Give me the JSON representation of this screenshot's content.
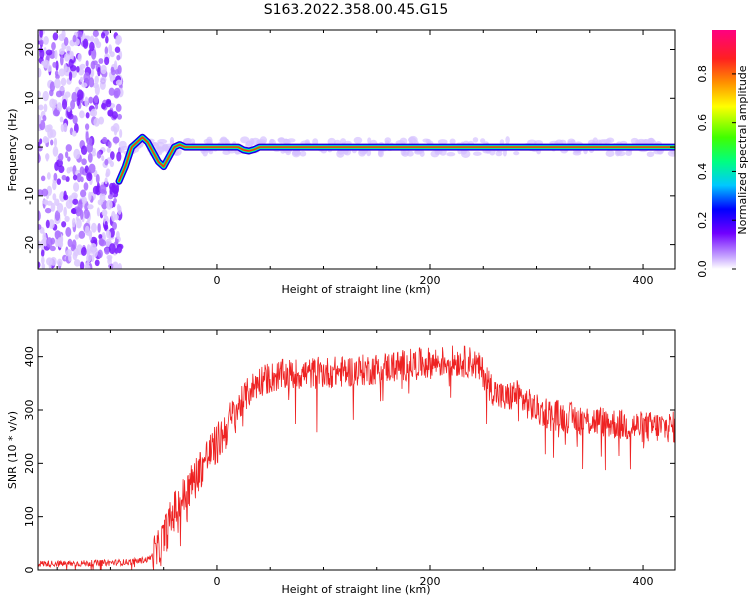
{
  "figure": {
    "title": "S163.2022.358.00.45.G15"
  },
  "chart_data": [
    {
      "type": "heatmap",
      "xlabel": "Height of straight line (km)",
      "ylabel": "Frequency (Hz)",
      "xlim": [
        -168,
        430
      ],
      "ylim": [
        -25,
        24
      ],
      "xticks": [
        0,
        200,
        400
      ],
      "yticks": [
        -20,
        -10,
        0,
        10,
        20
      ],
      "colorbar": {
        "label": "Normalized spectral amplitude",
        "range": [
          0,
          0.98
        ],
        "ticks": [
          0.0,
          0.2,
          0.4,
          0.6,
          0.8
        ],
        "colors": [
          "#ffffff",
          "#c8a8ff",
          "#7000ff",
          "#0000ff",
          "#00c8ff",
          "#00ff80",
          "#40ff00",
          "#ffff00",
          "#ff9000",
          "#ff2020",
          "#ff0080"
        ]
      },
      "ridge": {
        "x": [
          -92,
          -86,
          -80,
          -75,
          -70,
          -65,
          -60,
          -55,
          -50,
          -45,
          -40,
          -35,
          -30,
          -20,
          0,
          20,
          25,
          30,
          35,
          40,
          60,
          100,
          200,
          300,
          430
        ],
        "y": [
          -7,
          -4,
          0,
          1,
          2,
          1,
          -1,
          -3,
          -4,
          -2,
          0,
          0.5,
          0,
          0,
          0,
          0,
          -0.6,
          -0.8,
          -0.5,
          0,
          0,
          0,
          0,
          0,
          0
        ]
      },
      "noise_region_x": [
        -168,
        -90
      ]
    },
    {
      "type": "line",
      "xlabel": "Height of straight line (km)",
      "ylabel": "SNR (10 * v/v)",
      "xlim": [
        -168,
        430
      ],
      "ylim": [
        0,
        450
      ],
      "xticks": [
        0,
        200,
        400
      ],
      "yticks": [
        0,
        100,
        200,
        300,
        400
      ],
      "series": [
        {
          "color": "#ee2222",
          "x": [
            -168,
            -140,
            -110,
            -80,
            -65,
            -55,
            -48,
            -40,
            -30,
            -20,
            -10,
            0,
            10,
            20,
            30,
            40,
            60,
            80,
            100,
            120,
            140,
            160,
            180,
            200,
            220,
            240,
            250,
            260,
            270,
            280,
            290,
            300,
            320,
            340,
            360,
            380,
            400,
            430
          ],
          "y": [
            12,
            12,
            13,
            15,
            20,
            35,
            70,
            110,
            140,
            175,
            210,
            235,
            270,
            305,
            335,
            355,
            365,
            368,
            370,
            372,
            375,
            380,
            385,
            388,
            392,
            390,
            370,
            335,
            320,
            330,
            315,
            300,
            290,
            282,
            278,
            272,
            268,
            268
          ]
        }
      ]
    }
  ]
}
